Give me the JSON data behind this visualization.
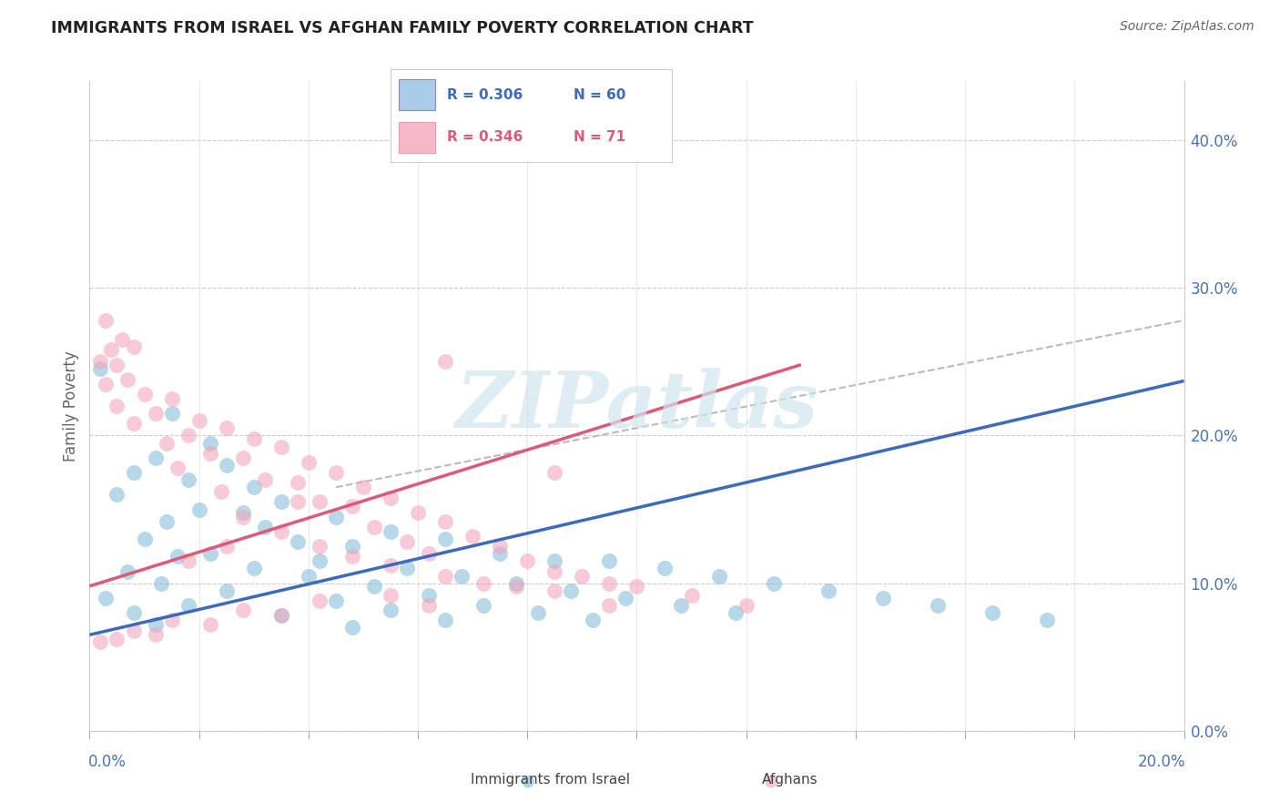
{
  "title": "IMMIGRANTS FROM ISRAEL VS AFGHAN FAMILY POVERTY CORRELATION CHART",
  "source": "Source: ZipAtlas.com",
  "ylabel": "Family Poverty",
  "ylabel_right_ticks": [
    "0.0%",
    "10.0%",
    "20.0%",
    "30.0%",
    "40.0%"
  ],
  "ylabel_right_vals": [
    0.0,
    0.1,
    0.2,
    0.3,
    0.4
  ],
  "xlim": [
    0.0,
    0.2
  ],
  "ylim": [
    0.0,
    0.44
  ],
  "color_israel": "#7db8d8",
  "color_afghan": "#f4a0b8",
  "color_line_israel": "#3b6abf",
  "color_line_afghan": "#e05878",
  "color_line_dash": "#bbbbbb",
  "watermark_text": "ZIPatlas",
  "watermark_color": "#d0e4f0",
  "israel_line": [
    0.0,
    0.065,
    0.2,
    0.237
  ],
  "afghan_line": [
    0.0,
    0.098,
    0.13,
    0.248
  ],
  "dash_line": [
    0.045,
    0.165,
    0.2,
    0.278
  ],
  "legend_items": [
    {
      "r": "R = 0.306",
      "n": "N = 60",
      "color_box": "#aacce8",
      "color_text": "#3b6abf"
    },
    {
      "r": "R = 0.346",
      "n": "N = 71",
      "color_box": "#f4b8c8",
      "color_text": "#e05878"
    }
  ],
  "israel_points": [
    [
      0.002,
      0.245
    ],
    [
      0.015,
      0.215
    ],
    [
      0.022,
      0.195
    ],
    [
      0.012,
      0.185
    ],
    [
      0.025,
      0.18
    ],
    [
      0.008,
      0.175
    ],
    [
      0.018,
      0.17
    ],
    [
      0.03,
      0.165
    ],
    [
      0.005,
      0.16
    ],
    [
      0.035,
      0.155
    ],
    [
      0.02,
      0.15
    ],
    [
      0.028,
      0.148
    ],
    [
      0.045,
      0.145
    ],
    [
      0.014,
      0.142
    ],
    [
      0.032,
      0.138
    ],
    [
      0.055,
      0.135
    ],
    [
      0.01,
      0.13
    ],
    [
      0.038,
      0.128
    ],
    [
      0.065,
      0.13
    ],
    [
      0.048,
      0.125
    ],
    [
      0.022,
      0.12
    ],
    [
      0.075,
      0.12
    ],
    [
      0.016,
      0.118
    ],
    [
      0.042,
      0.115
    ],
    [
      0.085,
      0.115
    ],
    [
      0.03,
      0.11
    ],
    [
      0.058,
      0.11
    ],
    [
      0.095,
      0.115
    ],
    [
      0.007,
      0.108
    ],
    [
      0.068,
      0.105
    ],
    [
      0.105,
      0.11
    ],
    [
      0.04,
      0.105
    ],
    [
      0.078,
      0.1
    ],
    [
      0.115,
      0.105
    ],
    [
      0.013,
      0.1
    ],
    [
      0.052,
      0.098
    ],
    [
      0.088,
      0.095
    ],
    [
      0.125,
      0.1
    ],
    [
      0.025,
      0.095
    ],
    [
      0.062,
      0.092
    ],
    [
      0.098,
      0.09
    ],
    [
      0.135,
      0.095
    ],
    [
      0.003,
      0.09
    ],
    [
      0.045,
      0.088
    ],
    [
      0.072,
      0.085
    ],
    [
      0.108,
      0.085
    ],
    [
      0.145,
      0.09
    ],
    [
      0.018,
      0.085
    ],
    [
      0.055,
      0.082
    ],
    [
      0.082,
      0.08
    ],
    [
      0.118,
      0.08
    ],
    [
      0.155,
      0.085
    ],
    [
      0.008,
      0.08
    ],
    [
      0.035,
      0.078
    ],
    [
      0.065,
      0.075
    ],
    [
      0.092,
      0.075
    ],
    [
      0.165,
      0.08
    ],
    [
      0.012,
      0.072
    ],
    [
      0.048,
      0.07
    ],
    [
      0.175,
      0.075
    ]
  ],
  "afghan_points": [
    [
      0.003,
      0.278
    ],
    [
      0.006,
      0.265
    ],
    [
      0.004,
      0.258
    ],
    [
      0.008,
      0.26
    ],
    [
      0.002,
      0.25
    ],
    [
      0.005,
      0.248
    ],
    [
      0.007,
      0.238
    ],
    [
      0.003,
      0.235
    ],
    [
      0.01,
      0.228
    ],
    [
      0.015,
      0.225
    ],
    [
      0.005,
      0.22
    ],
    [
      0.012,
      0.215
    ],
    [
      0.02,
      0.21
    ],
    [
      0.008,
      0.208
    ],
    [
      0.025,
      0.205
    ],
    [
      0.018,
      0.2
    ],
    [
      0.03,
      0.198
    ],
    [
      0.014,
      0.195
    ],
    [
      0.035,
      0.192
    ],
    [
      0.022,
      0.188
    ],
    [
      0.028,
      0.185
    ],
    [
      0.04,
      0.182
    ],
    [
      0.016,
      0.178
    ],
    [
      0.045,
      0.175
    ],
    [
      0.032,
      0.17
    ],
    [
      0.038,
      0.168
    ],
    [
      0.05,
      0.165
    ],
    [
      0.024,
      0.162
    ],
    [
      0.055,
      0.158
    ],
    [
      0.042,
      0.155
    ],
    [
      0.048,
      0.152
    ],
    [
      0.06,
      0.148
    ],
    [
      0.028,
      0.145
    ],
    [
      0.065,
      0.142
    ],
    [
      0.052,
      0.138
    ],
    [
      0.035,
      0.135
    ],
    [
      0.07,
      0.132
    ],
    [
      0.058,
      0.128
    ],
    [
      0.042,
      0.125
    ],
    [
      0.075,
      0.125
    ],
    [
      0.062,
      0.12
    ],
    [
      0.048,
      0.118
    ],
    [
      0.08,
      0.115
    ],
    [
      0.055,
      0.112
    ],
    [
      0.085,
      0.108
    ],
    [
      0.065,
      0.105
    ],
    [
      0.09,
      0.105
    ],
    [
      0.072,
      0.1
    ],
    [
      0.095,
      0.1
    ],
    [
      0.078,
      0.098
    ],
    [
      0.085,
      0.095
    ],
    [
      0.1,
      0.098
    ],
    [
      0.055,
      0.092
    ],
    [
      0.042,
      0.088
    ],
    [
      0.062,
      0.085
    ],
    [
      0.028,
      0.082
    ],
    [
      0.035,
      0.078
    ],
    [
      0.015,
      0.075
    ],
    [
      0.022,
      0.072
    ],
    [
      0.008,
      0.068
    ],
    [
      0.012,
      0.065
    ],
    [
      0.005,
      0.062
    ],
    [
      0.002,
      0.06
    ],
    [
      0.095,
      0.085
    ],
    [
      0.018,
      0.115
    ],
    [
      0.025,
      0.125
    ],
    [
      0.038,
      0.155
    ],
    [
      0.12,
      0.085
    ],
    [
      0.085,
      0.175
    ],
    [
      0.065,
      0.25
    ],
    [
      0.11,
      0.092
    ]
  ]
}
